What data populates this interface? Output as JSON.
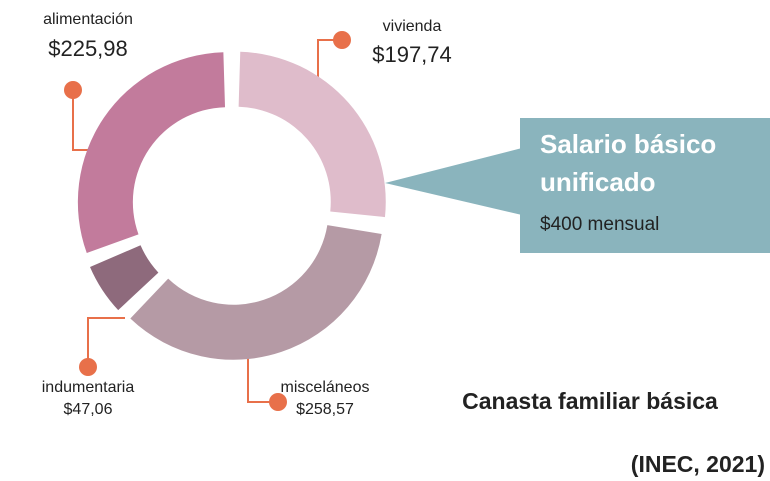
{
  "chart_data": {
    "type": "donut",
    "title": "Canasta familiar básica",
    "source": "(INEC, 2021)",
    "categories": [
      "vivienda",
      "misceláneos",
      "indumentaria",
      "alimentación"
    ],
    "values": [
      197.74,
      258.57,
      47.06,
      225.98
    ],
    "value_labels": [
      "$197,74",
      "$258,57",
      "$47,06",
      "$225,98"
    ],
    "colors": [
      "#dfbccb",
      "#b59aa5",
      "#8e6a7c",
      "#c27b9c"
    ],
    "callout": {
      "title": "Salario básico unificado",
      "text": "$400 mensual"
    }
  }
}
